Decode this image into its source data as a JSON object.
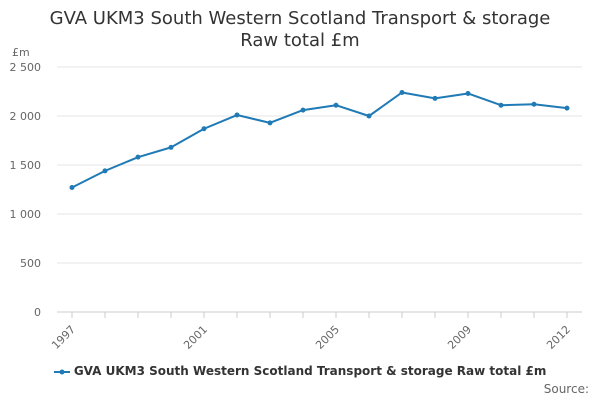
{
  "chart_data": {
    "type": "line",
    "title": "GVA UKM3 South Western Scotland Transport & storage",
    "subtitle": "Raw total £m",
    "ylabel": "£m",
    "xlabel": "",
    "ylim": [
      0,
      2500
    ],
    "y_ticks": [
      0,
      500,
      1000,
      1500,
      2000,
      2500
    ],
    "y_tick_labels": [
      "0",
      "500",
      "1 000",
      "1 500",
      "2 000",
      "2 500"
    ],
    "x_tick_labels": [
      "1997",
      "2001",
      "2005",
      "2009",
      "2012"
    ],
    "x": [
      1997,
      1998,
      1999,
      2000,
      2001,
      2002,
      2003,
      2004,
      2005,
      2006,
      2007,
      2008,
      2009,
      2010,
      2011,
      2012
    ],
    "series": [
      {
        "name": "GVA UKM3 South Western Scotland Transport & storage Raw total £m",
        "color": "#1f7ab5",
        "values": [
          1270,
          1440,
          1580,
          1680,
          1870,
          2010,
          1930,
          2060,
          2110,
          2000,
          2240,
          2180,
          2230,
          2110,
          2120,
          2080
        ]
      }
    ],
    "grid": true,
    "legend_position": "bottom",
    "source": "Source:"
  }
}
